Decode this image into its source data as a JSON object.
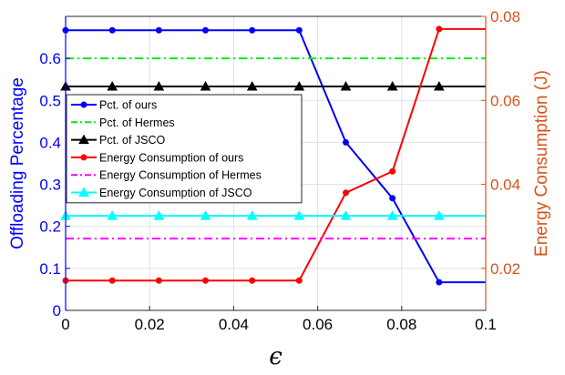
{
  "chart_data": {
    "type": "line",
    "x": [
      0,
      0.0111,
      0.0222,
      0.0333,
      0.0444,
      0.0556,
      0.0667,
      0.0778,
      0.0889,
      0.1
    ],
    "xlabel": "ϵ",
    "xlim": [
      0,
      0.1
    ],
    "xticks": [
      "0",
      "0.02",
      "0.04",
      "0.06",
      "0.08",
      "0.1"
    ],
    "ylabel_left": "Offloading Percentage",
    "ylim_left": [
      0,
      0.7
    ],
    "yticks_left": [
      "0",
      "0.1",
      "0.2",
      "0.3",
      "0.4",
      "0.5",
      "0.6"
    ],
    "ylabel_right": "Energy Consumption (J)",
    "ylim_right": [
      0.01,
      0.08
    ],
    "yticks_right": [
      "0.02",
      "0.04",
      "0.06",
      "0.08"
    ],
    "grid": true,
    "legend_position": "middle-left",
    "series": [
      {
        "name": "Pct. of ours",
        "axis": "left",
        "color": "#0000ff",
        "style": "solid",
        "marker": "circle",
        "values": [
          0.667,
          0.667,
          0.667,
          0.667,
          0.667,
          0.667,
          0.4,
          0.267,
          0.067,
          0.067
        ],
        "marker_upto": 9
      },
      {
        "name": "Pct. of Hermes",
        "axis": "left",
        "color": "#00ee00",
        "style": "dashdot",
        "marker": "none",
        "values": [
          0.6,
          0.6,
          0.6,
          0.6,
          0.6,
          0.6,
          0.6,
          0.6,
          0.6,
          0.6
        ]
      },
      {
        "name": "Pct. of JSCO",
        "axis": "left",
        "color": "#000000",
        "style": "solid",
        "marker": "triangle",
        "values": [
          0.533,
          0.533,
          0.533,
          0.533,
          0.533,
          0.533,
          0.533,
          0.533,
          0.533,
          0.533
        ],
        "marker_upto": 9
      },
      {
        "name": "Energy Consumption of ours",
        "axis": "right",
        "color": "#ff0000",
        "style": "solid",
        "marker": "circle",
        "values": [
          0.0171,
          0.0171,
          0.0171,
          0.0171,
          0.0171,
          0.0171,
          0.038,
          0.0431,
          0.077,
          0.077
        ],
        "marker_upto": 9
      },
      {
        "name": "Energy Consumption of Hermes",
        "axis": "right",
        "color": "#ff00ff",
        "style": "dashdot",
        "marker": "none",
        "values": [
          0.0271,
          0.0271,
          0.0271,
          0.0271,
          0.0271,
          0.0271,
          0.0271,
          0.0271,
          0.0271,
          0.0271
        ]
      },
      {
        "name": "Energy Consumption of JSCO",
        "axis": "right",
        "color": "#00ffff",
        "style": "solid",
        "marker": "triangle",
        "values": [
          0.0325,
          0.0325,
          0.0325,
          0.0325,
          0.0325,
          0.0325,
          0.0325,
          0.0325,
          0.0325,
          0.0325
        ],
        "marker_upto": 9
      }
    ],
    "colors": {
      "left_axis": "#0000ff",
      "right_axis": "#d95319",
      "grid": "#dde2ec"
    }
  }
}
